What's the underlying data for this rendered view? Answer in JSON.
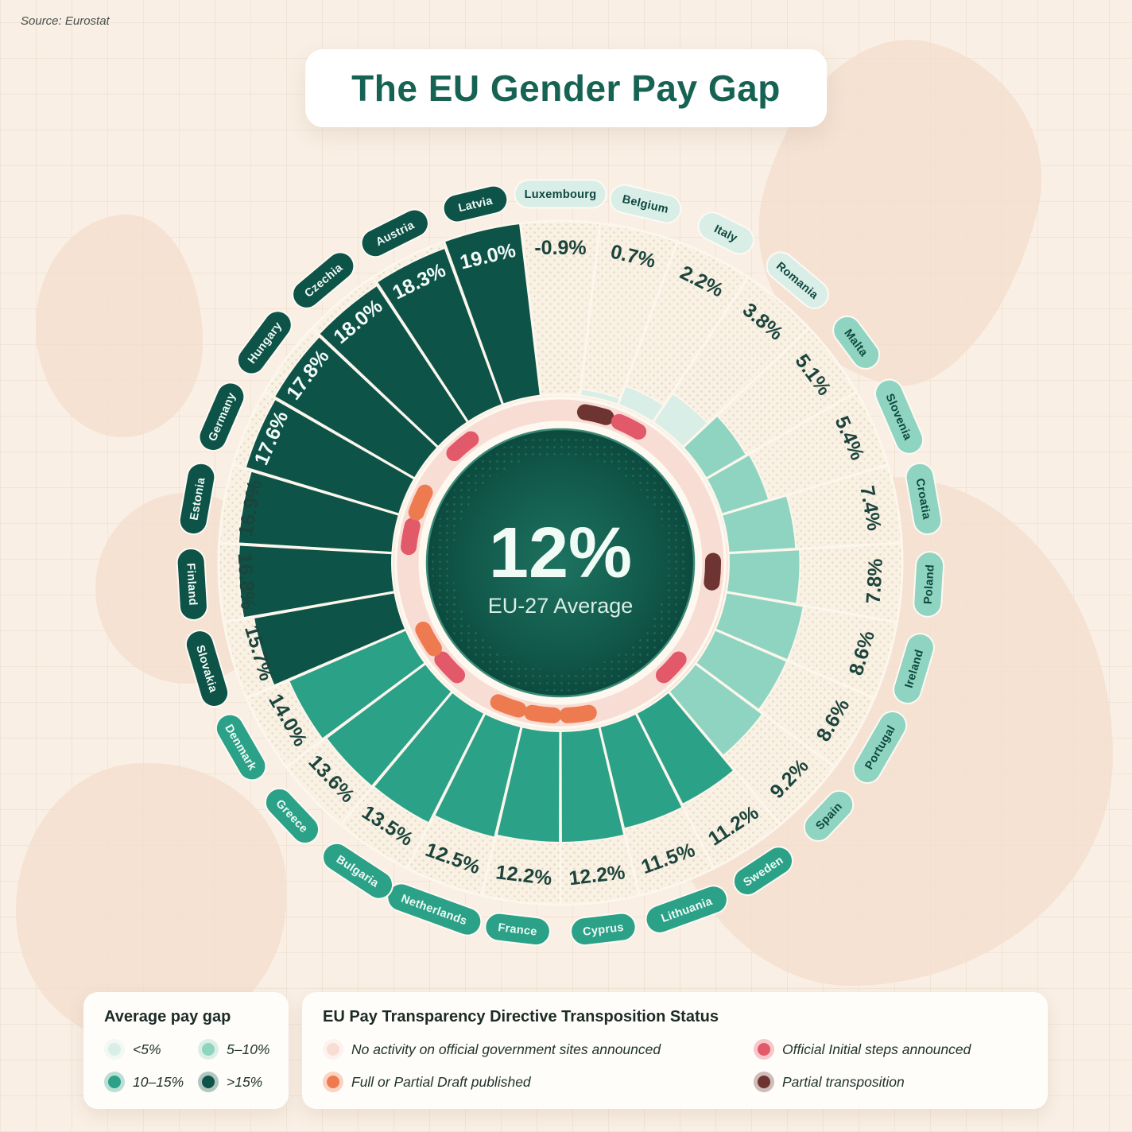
{
  "source": "Source: Eurostat",
  "title": "The EU Gender Pay Gap",
  "colors": {
    "title_green": "#176353",
    "background": "#f9efe4",
    "category": {
      "lt5": "#d8eee7",
      "b5_10": "#8fd4c1",
      "b10_15": "#2ba188",
      "gt15": "#0d5348"
    },
    "category_text": {
      "lt5": "#0e483e",
      "b5_10": "#0e483e",
      "b10_15": "#f2faf7",
      "gt15": "#f2faf7"
    },
    "status": {
      "none": "#f8ddd5",
      "initial": "#e2596a",
      "draft": "#ee7b50",
      "partial": "#6d3431"
    }
  },
  "chart_data": {
    "type": "radial-bar",
    "title": "The EU Gender Pay Gap",
    "center_value": "12%",
    "center_label": "EU-27 Average",
    "unit": "%",
    "vmax": 19,
    "direction": "clockwise",
    "start": "top",
    "countries": [
      {
        "name": "Luxembourg",
        "value": -0.9,
        "display": "-0.9%",
        "category": "lt5",
        "status": "none"
      },
      {
        "name": "Belgium",
        "value": 0.7,
        "display": "0.7%",
        "category": "lt5",
        "status": "partial"
      },
      {
        "name": "Italy",
        "value": 2.2,
        "display": "2.2%",
        "category": "lt5",
        "status": "initial"
      },
      {
        "name": "Romania",
        "value": 3.8,
        "display": "3.8%",
        "category": "lt5",
        "status": "none"
      },
      {
        "name": "Malta",
        "value": 5.1,
        "display": "5.1%",
        "category": "b5_10",
        "status": "none"
      },
      {
        "name": "Slovenia",
        "value": 5.4,
        "display": "5.4%",
        "category": "b5_10",
        "status": "none"
      },
      {
        "name": "Croatia",
        "value": 7.4,
        "display": "7.4%",
        "category": "b5_10",
        "status": "none"
      },
      {
        "name": "Poland",
        "value": 7.8,
        "display": "7.8%",
        "category": "b5_10",
        "status": "partial"
      },
      {
        "name": "Ireland",
        "value": 8.6,
        "display": "8.6%",
        "category": "b5_10",
        "status": "none"
      },
      {
        "name": "Portugal",
        "value": 8.6,
        "display": "8.6%",
        "category": "b5_10",
        "status": "none"
      },
      {
        "name": "Spain",
        "value": 9.2,
        "display": "9.2%",
        "category": "b5_10",
        "status": "initial"
      },
      {
        "name": "Sweden",
        "value": 11.2,
        "display": "11.2%",
        "category": "b10_15",
        "status": "none"
      },
      {
        "name": "Lithuania",
        "value": 11.5,
        "display": "11.5%",
        "category": "b10_15",
        "status": "none"
      },
      {
        "name": "Cyprus",
        "value": 12.2,
        "display": "12.2%",
        "category": "b10_15",
        "status": "draft"
      },
      {
        "name": "France",
        "value": 12.2,
        "display": "12.2%",
        "category": "b10_15",
        "status": "draft"
      },
      {
        "name": "Netherlands",
        "value": 12.5,
        "display": "12.5%",
        "category": "b10_15",
        "status": "draft"
      },
      {
        "name": "Bulgaria",
        "value": 13.5,
        "display": "13.5%",
        "category": "b10_15",
        "status": "none"
      },
      {
        "name": "Greece",
        "value": 13.6,
        "display": "13.6%",
        "category": "b10_15",
        "status": "initial"
      },
      {
        "name": "Denmark",
        "value": 14.0,
        "display": "14.0%",
        "category": "b10_15",
        "status": "draft"
      },
      {
        "name": "Slovakia",
        "value": 15.7,
        "display": "15.7%",
        "category": "gt15",
        "status": "none"
      },
      {
        "name": "Finland",
        "value": 16.8,
        "display": "16.8%",
        "category": "gt15",
        "status": "none"
      },
      {
        "name": "Estonia",
        "value": 16.9,
        "display": "16.9%",
        "category": "gt15",
        "status": "initial"
      },
      {
        "name": "Germany",
        "value": 17.6,
        "display": "17.6%",
        "category": "gt15",
        "status": "draft"
      },
      {
        "name": "Hungary",
        "value": 17.8,
        "display": "17.8%",
        "category": "gt15",
        "status": "none"
      },
      {
        "name": "Czechia",
        "value": 18.0,
        "display": "18.0%",
        "category": "gt15",
        "status": "initial"
      },
      {
        "name": "Austria",
        "value": 18.3,
        "display": "18.3%",
        "category": "gt15",
        "status": "none"
      },
      {
        "name": "Latvia",
        "value": 19.0,
        "display": "19.0%",
        "category": "gt15",
        "status": "none"
      }
    ]
  },
  "legend_paygap": {
    "title": "Average pay gap",
    "items": [
      {
        "label": "<5%",
        "color": "#d8eee7"
      },
      {
        "label": "5–10%",
        "color": "#8fd4c1"
      },
      {
        "label": "10–15%",
        "color": "#2ba188"
      },
      {
        "label": ">15%",
        "color": "#0d5348"
      }
    ]
  },
  "legend_status": {
    "title": "EU Pay Transparency Directive Transposition Status",
    "items": [
      {
        "label": "No activity on official government sites announced",
        "color": "#f8ddd5"
      },
      {
        "label": "Official Initial steps announced",
        "color": "#e2596a"
      },
      {
        "label": "Full or Partial Draft published",
        "color": "#ee7b50"
      },
      {
        "label": "Partial transposition",
        "color": "#6d3431"
      }
    ]
  }
}
